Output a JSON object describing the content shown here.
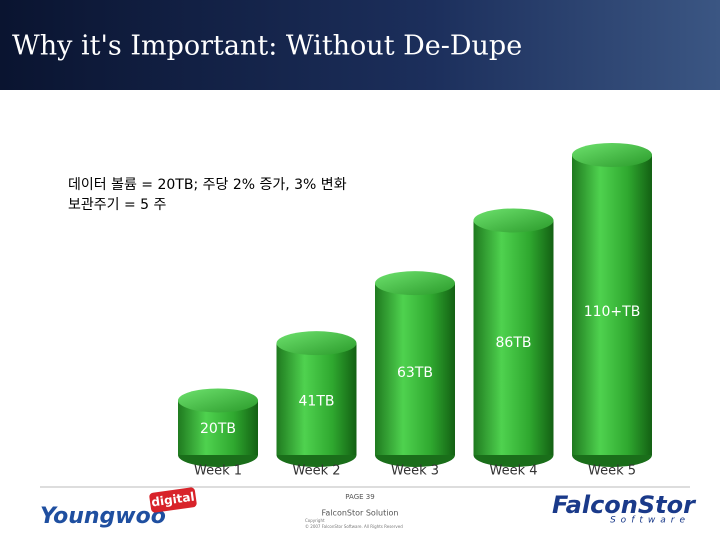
{
  "header": {
    "title": "Why it's Important:  Without De-Dupe"
  },
  "notes": [
    "데이터 볼륨 = 20TB; 주당 2% 증가, 3% 변화",
    "보관주기 = 5 주"
  ],
  "chart_data": {
    "type": "cylinder",
    "categories": [
      "Week 1",
      "Week 2",
      "Week 3",
      "Week 4",
      "Week 5"
    ],
    "values": [
      20,
      41,
      63,
      86,
      110
    ],
    "value_labels": [
      "20TB",
      "41TB",
      "63TB",
      "86TB",
      "110+TB"
    ],
    "color": "#3cb83c"
  },
  "footer": {
    "page": "PAGE 39",
    "section": "FalconStor Solution",
    "copyright": "Copyright",
    "rights": "© 2007 FalconStor Software. All Rights Reserved",
    "left_logo": "Youngwoo",
    "left_logo_tag": "digital",
    "right_logo": "FalconStor",
    "right_logo_sub": "Software"
  }
}
